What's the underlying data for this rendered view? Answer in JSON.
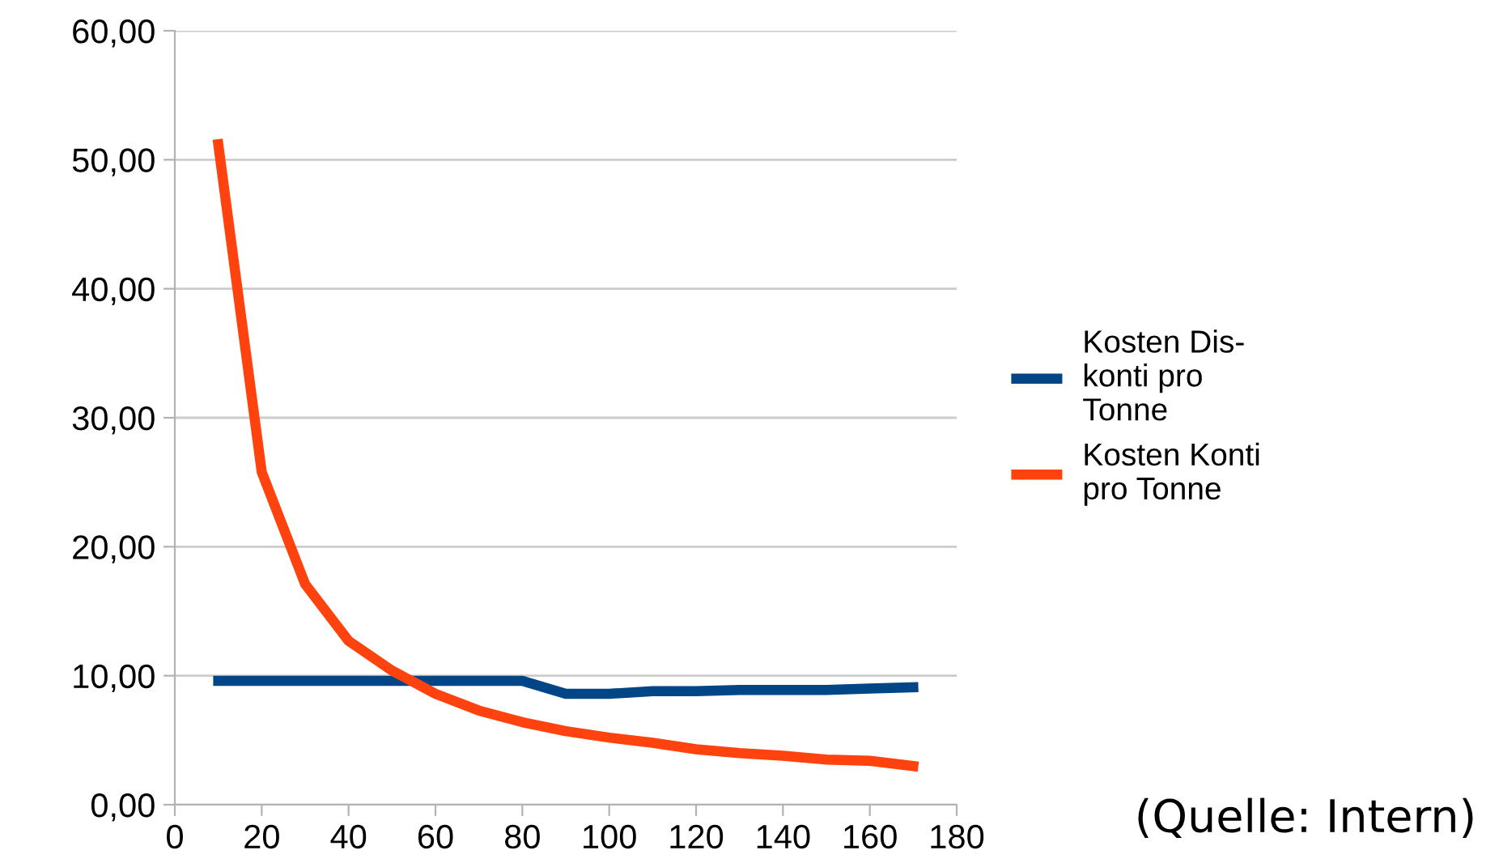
{
  "chart_data": {
    "type": "line",
    "x": [
      10,
      20,
      30,
      40,
      50,
      60,
      70,
      80,
      90,
      100,
      110,
      120,
      130,
      140,
      150,
      160,
      170
    ],
    "series": [
      {
        "name": "Kosten Dis-\nkonti pro\nTonne",
        "color": "#004586",
        "values": [
          9.6,
          9.6,
          9.6,
          9.6,
          9.6,
          9.6,
          9.6,
          9.6,
          8.6,
          8.6,
          8.8,
          8.8,
          8.9,
          8.9,
          8.9,
          9.0,
          9.1
        ]
      },
      {
        "name": "Kosten Konti\npro Tonne",
        "color": "#ff420e",
        "values": [
          51.2,
          25.8,
          17.1,
          12.7,
          10.4,
          8.6,
          7.3,
          6.4,
          5.7,
          5.2,
          4.8,
          4.3,
          4.0,
          3.8,
          3.5,
          3.4,
          3.0
        ]
      }
    ],
    "xlim": [
      0,
      180
    ],
    "xticks": [
      0,
      20,
      40,
      60,
      80,
      100,
      120,
      140,
      160,
      180
    ],
    "ylim": [
      0,
      60
    ],
    "yticks": [
      {
        "value": 0,
        "label": "0,00"
      },
      {
        "value": 10,
        "label": "10,00"
      },
      {
        "value": 20,
        "label": "20,00"
      },
      {
        "value": 30,
        "label": "30,00"
      },
      {
        "value": 40,
        "label": "40,00"
      },
      {
        "value": 50,
        "label": "50,00"
      },
      {
        "value": 60,
        "label": "60,00"
      }
    ],
    "grid": "y",
    "legend": "right",
    "marker": "none",
    "line_style": "solid",
    "annotations": [
      "(Quelle: Intern)"
    ]
  }
}
